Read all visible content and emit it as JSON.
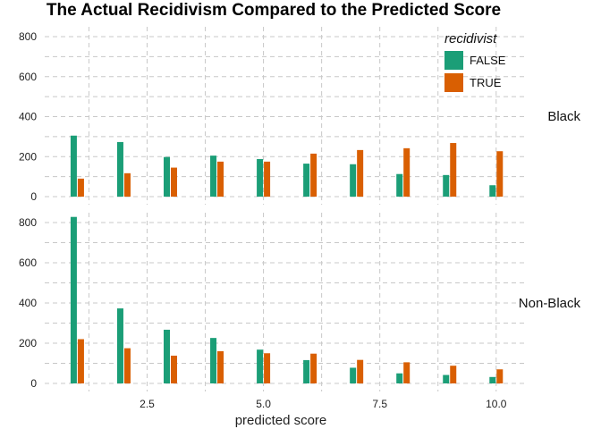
{
  "chart_data": {
    "type": "bar",
    "title": "The Actual Recidivism Compared to the Predicted Score",
    "xlabel": "predicted score",
    "ylabel": "",
    "x_ticks": [
      "2.5",
      "5.0",
      "7.5",
      "10.0"
    ],
    "x_tick_values": [
      2.5,
      5.0,
      7.5,
      10.0
    ],
    "y_ticks": [
      "0",
      "200",
      "400",
      "600",
      "800"
    ],
    "y_tick_values": [
      0,
      200,
      400,
      600,
      800
    ],
    "ylim": [
      0,
      850
    ],
    "xlim": [
      0.3,
      10.6
    ],
    "categories": [
      1,
      2,
      3,
      4,
      5,
      6,
      7,
      8,
      9,
      10
    ],
    "legend": {
      "title": "recidivist",
      "position": "top-right",
      "entries": [
        {
          "label": "FALSE",
          "color": "#1b9e77"
        },
        {
          "label": "TRUE",
          "color": "#d95f02"
        }
      ]
    },
    "panels": [
      {
        "label": "Black",
        "series": [
          {
            "name": "FALSE",
            "color": "#1b9e77",
            "values": [
              305,
              273,
              198,
              205,
              188,
              165,
              162,
              113,
              108,
              57
            ]
          },
          {
            "name": "TRUE",
            "color": "#d95f02",
            "values": [
              90,
              117,
              145,
              175,
              175,
              215,
              233,
              242,
              268,
              227
            ]
          }
        ]
      },
      {
        "label": "Non-Black",
        "series": [
          {
            "name": "FALSE",
            "color": "#1b9e77",
            "values": [
              828,
              373,
              267,
              226,
              168,
              116,
              78,
              50,
              42,
              32
            ]
          },
          {
            "name": "TRUE",
            "color": "#d95f02",
            "values": [
              220,
              175,
              138,
              160,
              150,
              148,
              117,
              105,
              88,
              70
            ]
          }
        ]
      }
    ]
  }
}
